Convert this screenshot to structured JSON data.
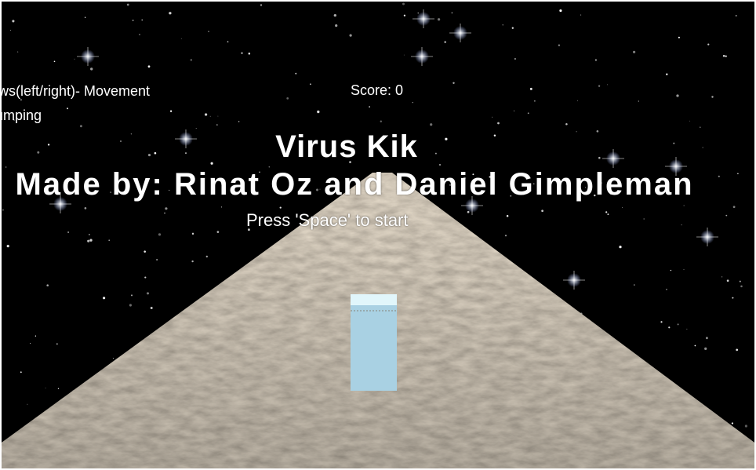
{
  "hud": {
    "controls_movement": "ows(left/right)-  Movement",
    "controls_jump": "jumping",
    "score_label": "Score: 0"
  },
  "title_screen": {
    "title": "Virus Kik",
    "credits": "Made by: Rinat Oz and Daniel Gimpleman",
    "start_prompt": "Press 'Space' to start"
  },
  "colors": {
    "sky": "#000000",
    "road": "#b4a48e",
    "player": "#a9d1e3",
    "hud_text": "#ffffff"
  }
}
